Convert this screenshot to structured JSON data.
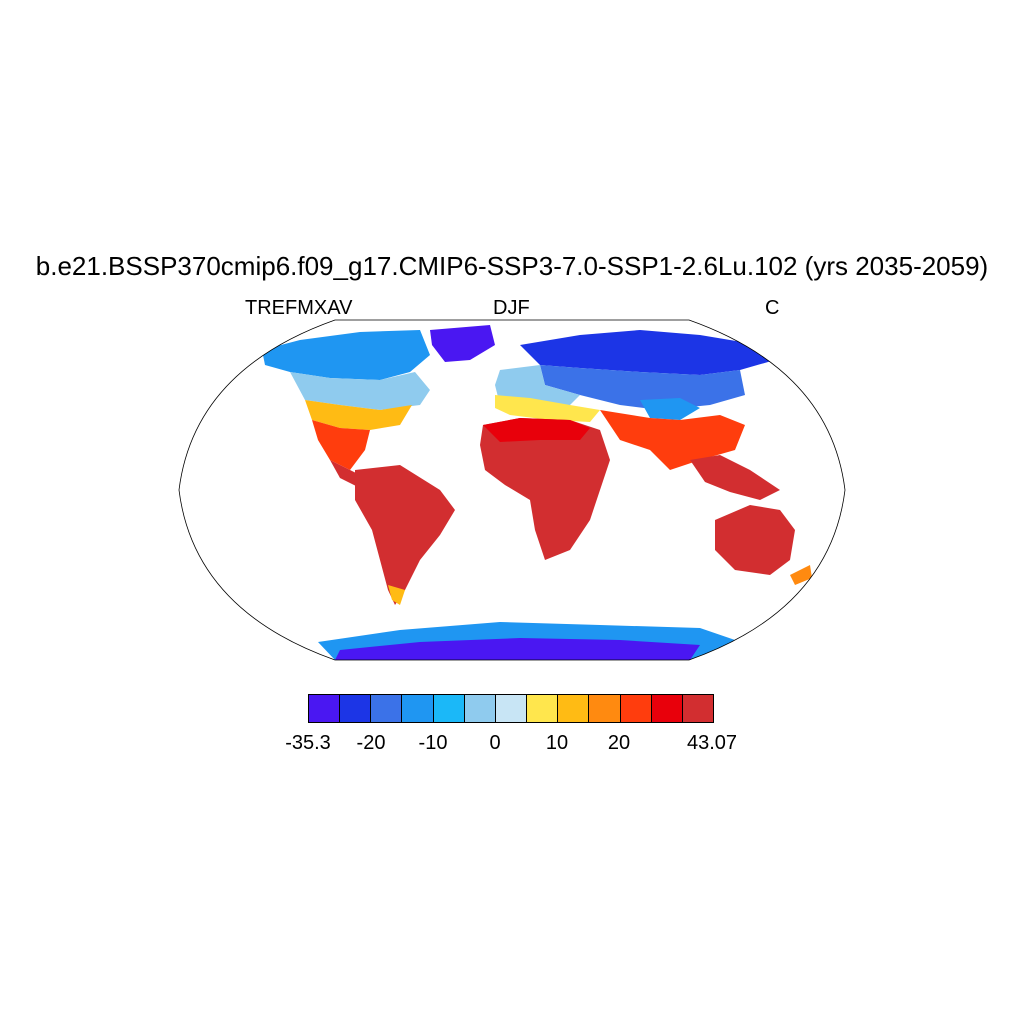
{
  "title": "b.e21.BSSP370cmip6.f09_g17.CMIP6-SSP3-7.0-SSP1-2.6Lu.102 (yrs 2035-2059)",
  "subtitle_left": "TREFMXAV",
  "subtitle_center": "DJF",
  "subtitle_right": "C",
  "colorbar": {
    "colors": [
      "#4a17f2",
      "#1c35e6",
      "#3b72e8",
      "#1f96f2",
      "#1bb8f8",
      "#8fcbee",
      "#c8e5f5",
      "#ffe64d",
      "#ffbb14",
      "#ff8a10",
      "#ff3d0d",
      "#e8000b",
      "#d22e30"
    ],
    "labels": [
      "-35.3",
      "-20",
      "-10",
      "0",
      "10",
      "20",
      "43.07"
    ]
  },
  "map": {
    "projection": "robinson",
    "ocean_color": "#ffffff",
    "outline_color": "#000000"
  }
}
